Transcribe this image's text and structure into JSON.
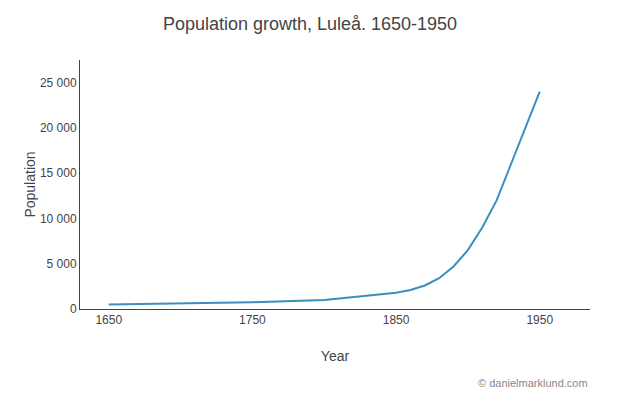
{
  "chart_data": {
    "type": "line",
    "title": "Population growth, Luleå. 1650-1950",
    "x_label": "Year",
    "y_label": "Population",
    "x": [
      1650,
      1700,
      1750,
      1800,
      1850,
      1860,
      1870,
      1880,
      1890,
      1900,
      1910,
      1920,
      1930,
      1940,
      1950
    ],
    "values": [
      500,
      600,
      750,
      1000,
      1800,
      2100,
      2600,
      3400,
      4700,
      6500,
      9000,
      12000,
      16000,
      20000,
      24000
    ],
    "color": "#3a8fc0",
    "xlim": [
      1630,
      1985
    ],
    "ylim": [
      0,
      27500
    ],
    "xticks": [
      1650,
      1750,
      1850,
      1950
    ],
    "yticks": [
      0,
      {
        "value": 5000,
        "label": "5 000"
      },
      {
        "value": 10000,
        "label": "10 000"
      },
      {
        "value": 15000,
        "label": "15 000"
      },
      {
        "value": 20000,
        "label": "20 000"
      },
      {
        "value": 25000,
        "label": "25 000"
      }
    ],
    "grid": false,
    "annotations": [
      "© danielmarklund.com"
    ]
  }
}
